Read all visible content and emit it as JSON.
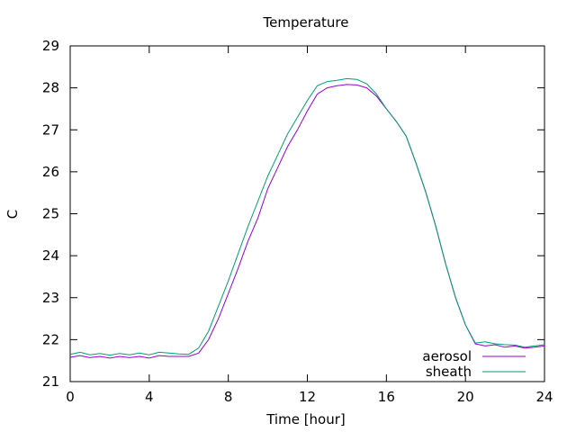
{
  "chart_data": {
    "type": "line",
    "title": "Temperature",
    "xlabel": "Time [hour]",
    "ylabel": "C",
    "xlim": [
      0,
      24
    ],
    "ylim": [
      21,
      29
    ],
    "xticks": [
      0,
      4,
      8,
      12,
      16,
      20,
      24
    ],
    "yticks": [
      21,
      22,
      23,
      24,
      25,
      26,
      27,
      28,
      29
    ],
    "grid": false,
    "legend_position": "bottom-right",
    "series": [
      {
        "name": "aerosol",
        "color": "#9400d3",
        "x": [
          0,
          0.5,
          1,
          1.5,
          2,
          2.5,
          3,
          3.5,
          4,
          4.5,
          5,
          5.5,
          6,
          6.5,
          7,
          7.5,
          8,
          8.5,
          9,
          9.5,
          10,
          10.5,
          11,
          11.5,
          12,
          12.5,
          13,
          13.5,
          14,
          14.5,
          15,
          15.5,
          16,
          16.5,
          17,
          17.5,
          18,
          18.5,
          19,
          19.5,
          20,
          20.5,
          21,
          21.5,
          22,
          22.5,
          23,
          23.5,
          24
        ],
        "y": [
          21.58,
          21.62,
          21.57,
          21.6,
          21.56,
          21.6,
          21.57,
          21.6,
          21.56,
          21.62,
          21.6,
          21.6,
          21.6,
          21.68,
          22.0,
          22.5,
          23.1,
          23.7,
          24.35,
          24.9,
          25.6,
          26.1,
          26.6,
          27.0,
          27.45,
          27.85,
          28.0,
          28.05,
          28.08,
          28.07,
          28.0,
          27.8,
          27.5,
          27.2,
          26.85,
          26.2,
          25.5,
          24.7,
          23.8,
          23.0,
          22.35,
          21.9,
          21.85,
          21.88,
          21.82,
          21.85,
          21.8,
          21.82,
          21.85
        ]
      },
      {
        "name": "sheath",
        "color": "#009e73",
        "x": [
          0,
          0.5,
          1,
          1.5,
          2,
          2.5,
          3,
          3.5,
          4,
          4.5,
          5,
          5.5,
          6,
          6.5,
          7,
          7.5,
          8,
          8.5,
          9,
          9.5,
          10,
          10.5,
          11,
          11.5,
          12,
          12.5,
          13,
          13.5,
          14,
          14.5,
          15,
          15.5,
          16,
          16.5,
          17,
          17.5,
          18,
          18.5,
          19,
          19.5,
          20,
          20.5,
          21,
          21.5,
          22,
          22.5,
          23,
          23.5,
          24
        ],
        "y": [
          21.65,
          21.7,
          21.64,
          21.67,
          21.63,
          21.67,
          21.64,
          21.68,
          21.64,
          21.7,
          21.68,
          21.66,
          21.65,
          21.8,
          22.2,
          22.8,
          23.4,
          24.05,
          24.7,
          25.3,
          25.9,
          26.4,
          26.9,
          27.3,
          27.7,
          28.05,
          28.15,
          28.18,
          28.22,
          28.2,
          28.1,
          27.85,
          27.5,
          27.2,
          26.85,
          26.2,
          25.5,
          24.7,
          23.8,
          23.0,
          22.35,
          21.92,
          21.95,
          21.9,
          21.88,
          21.87,
          21.82,
          21.85,
          21.88
        ]
      }
    ]
  }
}
